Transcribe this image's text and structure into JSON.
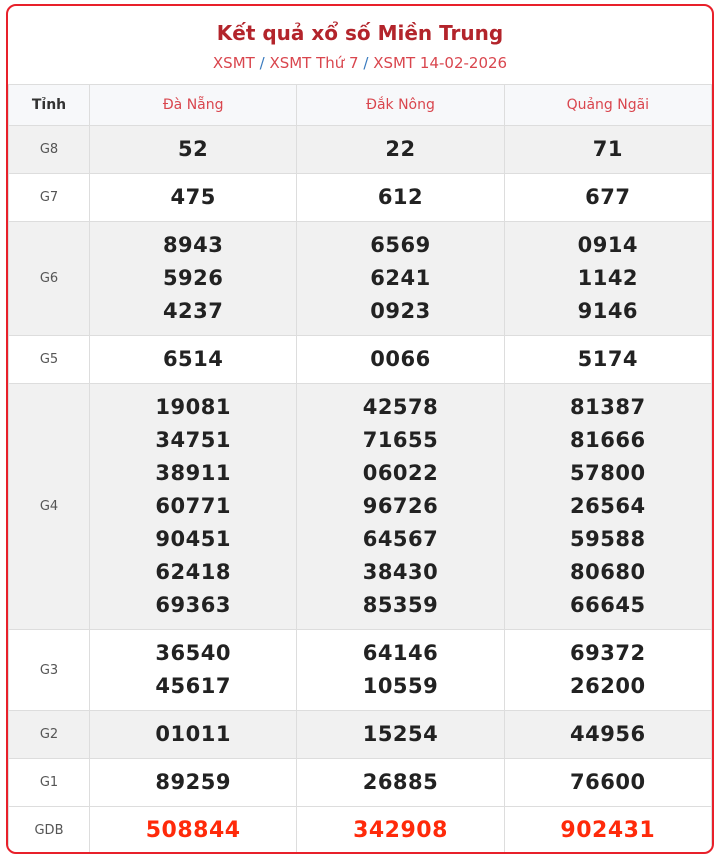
{
  "title": "Kết quả xổ số Miền Trung",
  "breadcrumb": [
    "XSMT",
    "XSMT Thứ 7",
    "XSMT 14-02-2026"
  ],
  "breadcrumb_sep": "/",
  "colors": {
    "accent": "#e8202a",
    "title": "#b3242b",
    "special": "#ff2a0a"
  },
  "table": {
    "header": [
      "Tỉnh",
      "Đà Nẵng",
      "Đắk Nông",
      "Quảng Ngãi"
    ],
    "rows": [
      {
        "label": "G8",
        "values": [
          [
            "52"
          ],
          [
            "22"
          ],
          [
            "71"
          ]
        ]
      },
      {
        "label": "G7",
        "values": [
          [
            "475"
          ],
          [
            "612"
          ],
          [
            "677"
          ]
        ]
      },
      {
        "label": "G6",
        "values": [
          [
            "8943",
            "5926",
            "4237"
          ],
          [
            "6569",
            "6241",
            "0923"
          ],
          [
            "0914",
            "1142",
            "9146"
          ]
        ]
      },
      {
        "label": "G5",
        "values": [
          [
            "6514"
          ],
          [
            "0066"
          ],
          [
            "5174"
          ]
        ]
      },
      {
        "label": "G4",
        "values": [
          [
            "19081",
            "34751",
            "38911",
            "60771",
            "90451",
            "62418",
            "69363"
          ],
          [
            "42578",
            "71655",
            "06022",
            "96726",
            "64567",
            "38430",
            "85359"
          ],
          [
            "81387",
            "81666",
            "57800",
            "26564",
            "59588",
            "80680",
            "66645"
          ]
        ]
      },
      {
        "label": "G3",
        "values": [
          [
            "36540",
            "45617"
          ],
          [
            "64146",
            "10559"
          ],
          [
            "69372",
            "26200"
          ]
        ]
      },
      {
        "label": "G2",
        "values": [
          [
            "01011"
          ],
          [
            "15254"
          ],
          [
            "44956"
          ]
        ]
      },
      {
        "label": "G1",
        "values": [
          [
            "89259"
          ],
          [
            "26885"
          ],
          [
            "76600"
          ]
        ]
      },
      {
        "label": "GDB",
        "values": [
          [
            "508844"
          ],
          [
            "342908"
          ],
          [
            "902431"
          ]
        ]
      }
    ]
  }
}
